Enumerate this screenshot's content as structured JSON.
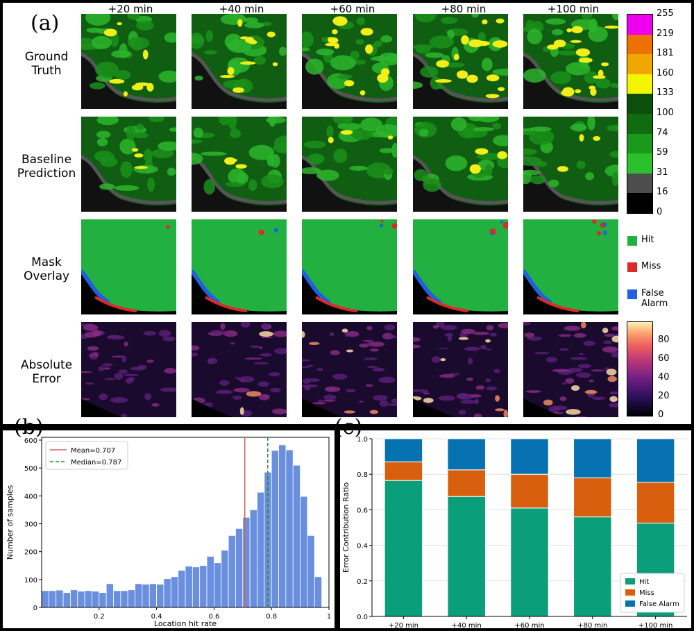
{
  "panel_a": {
    "label": "(a)",
    "column_labels": [
      "+20 min",
      "+40 min",
      "+60 min",
      "+80 min",
      "+100 min"
    ],
    "row_labels": [
      [
        "Ground",
        "Truth"
      ],
      [
        "Baseline",
        "Prediction"
      ],
      [
        "Mask",
        "Overlay"
      ],
      [
        "Absolute",
        "Error"
      ]
    ],
    "value_colorbar": {
      "ticks": [
        "255",
        "219",
        "181",
        "160",
        "133",
        "100",
        "74",
        "59",
        "31",
        "16",
        "0"
      ],
      "colors": [
        "#ee00ee",
        "#ee7000",
        "#f0a800",
        "#f5f500",
        "#0c4f0c",
        "#0f6d0f",
        "#1a9a1a",
        "#2cc02c",
        "#4d4d4d",
        "#000000"
      ]
    },
    "mask_legend": [
      {
        "label": "Hit",
        "color": "#22b040"
      },
      {
        "label": "Miss",
        "color": "#e02828"
      },
      {
        "label": "False Alarm",
        "color": "#1f5fe0"
      }
    ],
    "error_colorbar": {
      "ticks": [
        "80",
        "60",
        "40",
        "20",
        "0"
      ],
      "range": [
        0,
        100
      ]
    }
  },
  "panel_b": {
    "label": "(b)",
    "chart_data": {
      "type": "bar",
      "xlabel": "Location hit rate",
      "ylabel": "Number of samples",
      "xlim": [
        0,
        1
      ],
      "ylim": [
        0,
        610
      ],
      "xticks": [
        "0.2",
        "0.4",
        "0.6",
        "0.8",
        "1"
      ],
      "yticks": [
        "0",
        "100",
        "200",
        "300",
        "400",
        "500",
        "600"
      ],
      "bin_width": 0.025,
      "values": [
        60,
        60,
        62,
        53,
        63,
        58,
        60,
        58,
        53,
        85,
        60,
        60,
        63,
        85,
        83,
        85,
        83,
        103,
        110,
        133,
        148,
        145,
        150,
        183,
        160,
        205,
        258,
        283,
        323,
        350,
        413,
        485,
        563,
        583,
        565,
        510,
        398,
        258,
        110
      ],
      "series": [
        {
          "name": "Mean=0.707",
          "value": 0.707,
          "color": "#d0605e",
          "style": "solid"
        },
        {
          "name": "Median=0.787",
          "value": 0.787,
          "color": "#2a8a3a",
          "style": "dashed"
        }
      ],
      "bar_color": "#6a8fde"
    }
  },
  "panel_c": {
    "label": "(c)",
    "chart_data": {
      "type": "bar",
      "stacked": true,
      "categories": [
        "+20 min",
        "+40 min",
        "+60 min",
        "+80 min",
        "+100 min"
      ],
      "ylabel": "Error Contribution Ratio",
      "ylim": [
        0,
        1
      ],
      "yticks": [
        "0.0",
        "0.2",
        "0.4",
        "0.6",
        "0.8",
        "1.0"
      ],
      "legend_position": "lower-right",
      "series": [
        {
          "name": "Hit",
          "color": "#0a9e7a",
          "values": [
            0.765,
            0.675,
            0.61,
            0.56,
            0.525
          ]
        },
        {
          "name": "Miss",
          "color": "#d85f0e",
          "values": [
            0.105,
            0.15,
            0.19,
            0.22,
            0.23
          ]
        },
        {
          "name": "False Alarm",
          "color": "#0672b2",
          "values": [
            0.13,
            0.175,
            0.2,
            0.22,
            0.245
          ]
        }
      ]
    }
  }
}
